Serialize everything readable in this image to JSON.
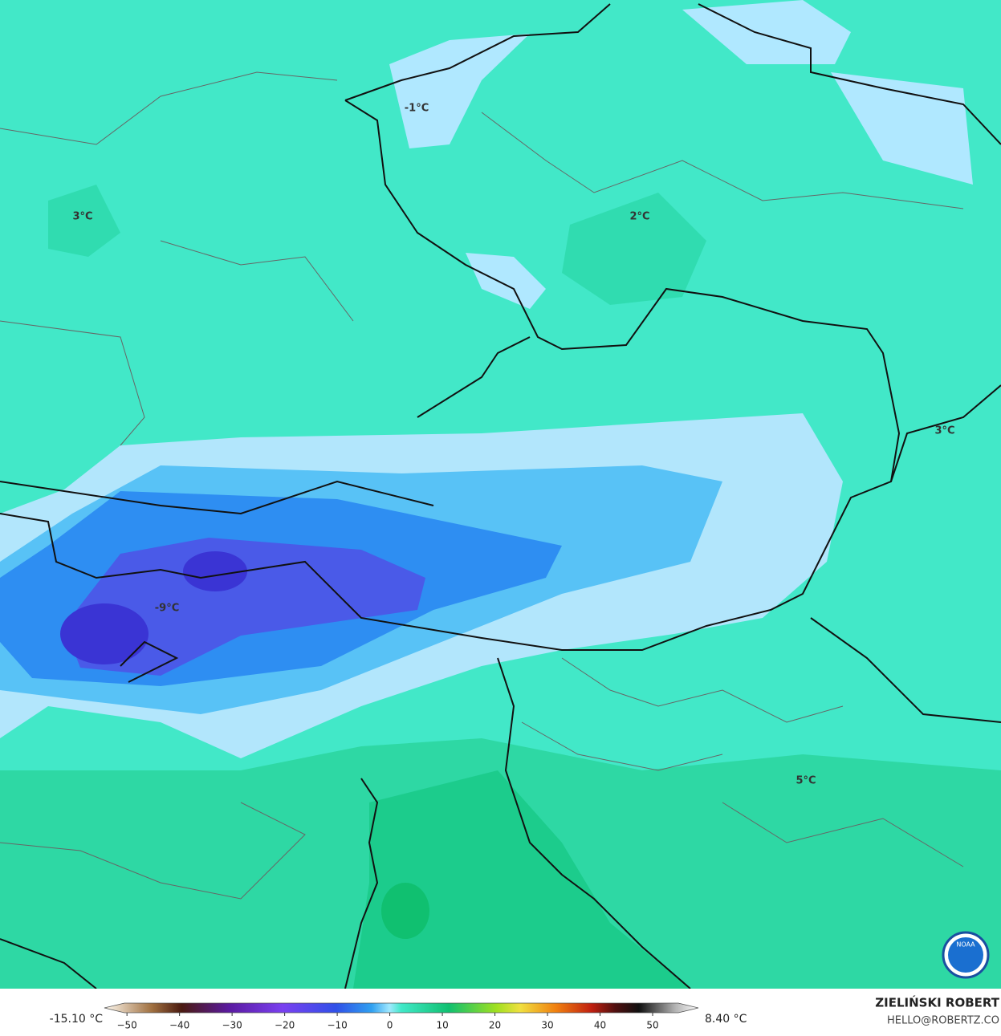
{
  "map": {
    "labels": [
      "-1°C",
      "3°C",
      "2°C",
      "3°C",
      "-9°C",
      "5°C"
    ],
    "logo": "NOAA"
  },
  "colorbar": {
    "range": [
      -54.3,
      58.7
    ],
    "ticks": [
      {
        "value": -50,
        "label": "−50"
      },
      {
        "value": -40,
        "label": "−40"
      },
      {
        "value": -30,
        "label": "−30"
      },
      {
        "value": -20,
        "label": "−20"
      },
      {
        "value": -10,
        "label": "−10"
      },
      0,
      10,
      20,
      30,
      40,
      50
    ],
    "min_label": "-15.10 °C",
    "max_label": "8.40 °C"
  },
  "credit": {
    "name": "ZIELIŃSKI ROBERT",
    "email": "HELLO@ROBERTZ.CO"
  }
}
